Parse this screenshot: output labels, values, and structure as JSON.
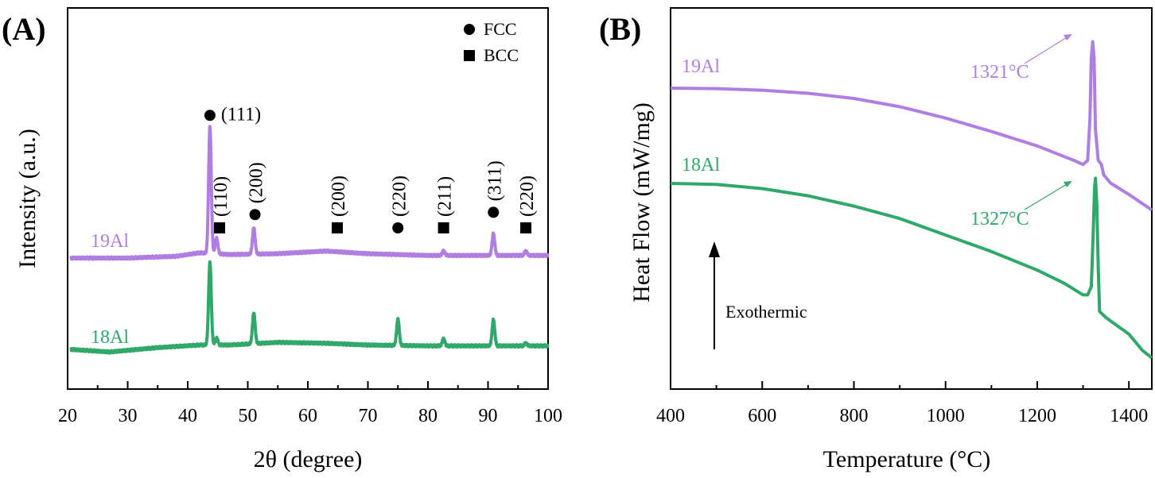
{
  "colors": {
    "series_19Al": "#b07ee0",
    "series_18Al": "#2fa86a",
    "axis": "#000000"
  },
  "chart_data": [
    {
      "panel": "(A)",
      "type": "line",
      "xlabel": "2θ (degree)",
      "ylabel": "Intensity (a.u.)",
      "xlim": [
        20,
        100
      ],
      "xticks": [
        20,
        30,
        40,
        50,
        60,
        70,
        80,
        90,
        100
      ],
      "yticks": "none",
      "grid": false,
      "legend": {
        "placement": "top-right",
        "entries": [
          {
            "marker": "circle",
            "label": "FCC"
          },
          {
            "marker": "square",
            "label": "BCC"
          }
        ]
      },
      "peaks": [
        {
          "x": 43.7,
          "marker": "circle",
          "label": "(111)"
        },
        {
          "x": 45.3,
          "marker": "square",
          "label": "(110)"
        },
        {
          "x": 51.2,
          "marker": "circle",
          "label": "(200)"
        },
        {
          "x": 64.9,
          "marker": "square",
          "label": "(200)"
        },
        {
          "x": 75.0,
          "marker": "circle",
          "label": "(220)"
        },
        {
          "x": 82.6,
          "marker": "square",
          "label": "(211)"
        },
        {
          "x": 90.9,
          "marker": "circle",
          "label": "(311)"
        },
        {
          "x": 96.3,
          "marker": "square",
          "label": "(220)"
        }
      ],
      "series": [
        {
          "name": "19Al",
          "color": "#b07ee0",
          "offset": 1.0,
          "baseline": [
            [
              20.5,
              0.0
            ],
            [
              30,
              0.0
            ],
            [
              38,
              0.02
            ],
            [
              42,
              0.06
            ],
            [
              47,
              0.04
            ],
            [
              55,
              0.05
            ],
            [
              63,
              0.08
            ],
            [
              70,
              0.05
            ],
            [
              80,
              0.03
            ],
            [
              90,
              0.03
            ],
            [
              100,
              0.03
            ]
          ],
          "peaks": [
            [
              43.7,
              1.45
            ],
            [
              44.8,
              0.18
            ],
            [
              51.0,
              0.3
            ],
            [
              82.6,
              0.05
            ],
            [
              90.9,
              0.25
            ],
            [
              96.3,
              0.05
            ]
          ]
        },
        {
          "name": "18Al",
          "color": "#2fa86a",
          "offset": 0.0,
          "baseline": [
            [
              20.5,
              0.0
            ],
            [
              27,
              -0.03
            ],
            [
              35,
              0.02
            ],
            [
              42,
              0.05
            ],
            [
              47,
              0.05
            ],
            [
              55,
              0.08
            ],
            [
              63,
              0.07
            ],
            [
              70,
              0.05
            ],
            [
              80,
              0.04
            ],
            [
              90,
              0.04
            ],
            [
              100,
              0.04
            ]
          ],
          "peaks": [
            [
              43.7,
              0.95
            ],
            [
              44.8,
              0.08
            ],
            [
              51.0,
              0.35
            ],
            [
              75.0,
              0.3
            ],
            [
              82.6,
              0.08
            ],
            [
              90.9,
              0.3
            ],
            [
              96.3,
              0.03
            ]
          ]
        }
      ]
    },
    {
      "panel": "(B)",
      "type": "line",
      "xlabel": "Temperature (°C)",
      "ylabel": "Heat Flow (mW/mg)",
      "xlim": [
        400,
        1450
      ],
      "xticks": [
        400,
        600,
        800,
        1000,
        1200,
        1400
      ],
      "yticks": "none",
      "grid": false,
      "arrow_annotation": "Exothermic",
      "series": [
        {
          "name": "19Al",
          "color": "#b07ee0",
          "peak_label": "1321°C",
          "points": [
            [
              400,
              0.0
            ],
            [
              500,
              0.005
            ],
            [
              600,
              0.02
            ],
            [
              700,
              0.05
            ],
            [
              800,
              0.1
            ],
            [
              900,
              0.18
            ],
            [
              1000,
              0.29
            ],
            [
              1100,
              0.42
            ],
            [
              1200,
              0.56
            ],
            [
              1280,
              0.7
            ],
            [
              1300,
              0.74
            ],
            [
              1310,
              0.7
            ],
            [
              1315,
              0.3
            ],
            [
              1318,
              -0.3
            ],
            [
              1321,
              -0.45
            ],
            [
              1324,
              -0.3
            ],
            [
              1327,
              0.4
            ],
            [
              1333,
              0.7
            ],
            [
              1340,
              0.74
            ],
            [
              1345,
              0.84
            ],
            [
              1360,
              0.92
            ],
            [
              1400,
              1.03
            ],
            [
              1430,
              1.12
            ],
            [
              1450,
              1.18
            ]
          ]
        },
        {
          "name": "18Al",
          "color": "#2fa86a",
          "peak_label": "1327°C",
          "points": [
            [
              400,
              0.0
            ],
            [
              500,
              0.01
            ],
            [
              600,
              0.05
            ],
            [
              700,
              0.12
            ],
            [
              800,
              0.22
            ],
            [
              900,
              0.34
            ],
            [
              1000,
              0.5
            ],
            [
              1100,
              0.66
            ],
            [
              1200,
              0.84
            ],
            [
              1260,
              0.97
            ],
            [
              1300,
              1.08
            ],
            [
              1310,
              1.08
            ],
            [
              1318,
              1.0
            ],
            [
              1322,
              0.5
            ],
            [
              1325,
              0.05
            ],
            [
              1327,
              -0.05
            ],
            [
              1330,
              0.2
            ],
            [
              1333,
              0.8
            ],
            [
              1336,
              1.24
            ],
            [
              1350,
              1.3
            ],
            [
              1400,
              1.46
            ],
            [
              1430,
              1.62
            ],
            [
              1450,
              1.69
            ]
          ]
        }
      ]
    }
  ]
}
